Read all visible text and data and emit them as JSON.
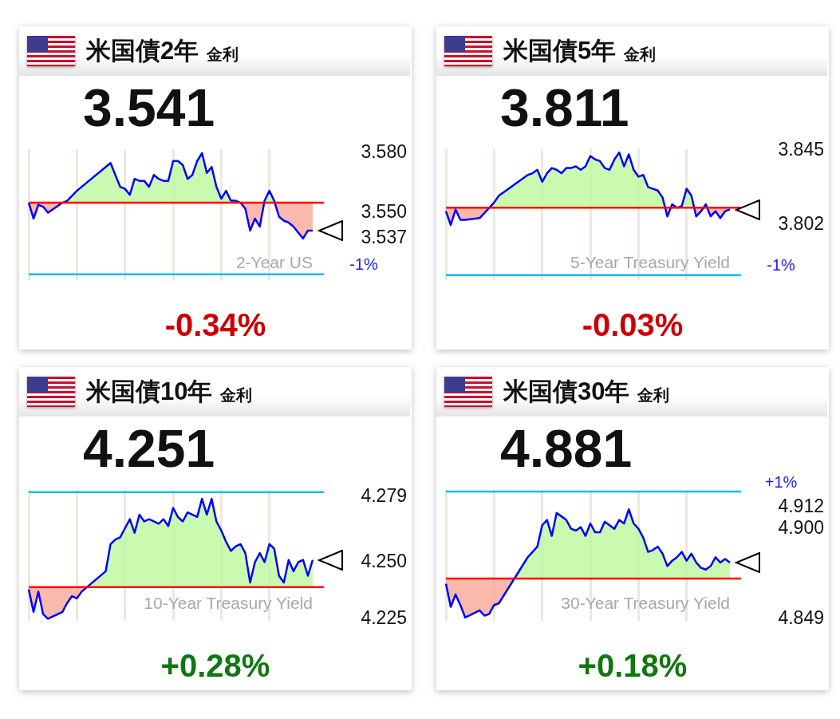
{
  "chart_data": [
    {
      "type": "line",
      "title": "米国債2年",
      "subtitle": "金利",
      "annotations": [
        "3.541",
        "-0.34%",
        "2-Year US",
        "-1%"
      ],
      "tick_labels": "y",
      "grid": "x",
      "color": "#0000ff",
      "categories": [
        null,
        null,
        null,
        null,
        null,
        null,
        null,
        null,
        null,
        null,
        null,
        null,
        null,
        null,
        null,
        null,
        null,
        null,
        null,
        null,
        null,
        null,
        null,
        null,
        null,
        null,
        null,
        null,
        null,
        null,
        null,
        null,
        null,
        null,
        null,
        null,
        null,
        null,
        null,
        null,
        null,
        null,
        null,
        null,
        null,
        null,
        null,
        null,
        null,
        null,
        null,
        null,
        null,
        null,
        null,
        null,
        null,
        null,
        null,
        null
      ],
      "values": [
        3.555,
        3.547,
        3.554,
        3.553,
        3.55,
        null,
        null,
        3.555,
        3.556,
        null,
        3.561,
        3.563,
        null,
        null,
        null,
        null,
        null,
        3.575,
        3.569,
        3.563,
        3.562,
        3.559,
        3.567,
        3.566,
        3.566,
        3.563,
        3.569,
        3.567,
        3.566,
        3.566,
        3.576,
        3.576,
        3.574,
        3.567,
        3.569,
        3.576,
        3.58,
        3.57,
        3.573,
        3.563,
        3.557,
        3.561,
        3.556,
        3.556,
        3.555,
        3.552,
        3.541,
        3.547,
        3.543,
        3.556,
        3.561,
        3.556,
        3.548,
        3.546,
        3.545,
        3.543,
        3.54,
        3.537,
        3.541,
        3.541
      ],
      "ylim": [
        3.516,
        3.582
      ],
      "yticks": [
        {
          "value": 3.58,
          "label": "3.580"
        },
        {
          "value": 3.55,
          "label": "3.550"
        },
        3.537
      ],
      "ref_lines": [
        {
          "axis": "y",
          "value": 3.555,
          "color": "#ff0000"
        },
        {
          "axis": "y",
          "value": 3.519,
          "color": "#00c0f0"
        }
      ]
    },
    {
      "type": "line",
      "title": "米国債5年",
      "subtitle": "金利",
      "annotations": [
        "3.811",
        "-0.03%",
        "5-Year Treasury Yield",
        "-1%"
      ],
      "tick_labels": "y",
      "grid": "x",
      "color": "#0000ff",
      "categories": [
        null,
        null,
        null,
        null,
        null,
        null,
        null,
        null,
        null,
        null,
        null,
        null,
        null,
        null,
        null,
        null,
        null,
        null,
        null,
        null,
        null,
        null,
        null,
        null,
        null,
        null,
        null,
        null,
        null,
        null,
        null,
        null,
        null,
        null,
        null,
        null,
        null,
        null,
        null,
        null,
        null,
        null,
        null,
        null,
        null,
        null,
        null,
        null,
        null,
        null,
        null,
        null,
        null,
        null,
        null,
        null,
        null,
        null,
        null,
        null
      ],
      "values": [
        3.81,
        3.802,
        3.811,
        3.805,
        3.805,
        null,
        null,
        3.806,
        3.809,
        null,
        3.815,
        3.819,
        null,
        null,
        null,
        null,
        null,
        3.831,
        3.832,
        3.834,
        3.827,
        3.832,
        3.835,
        3.834,
        3.832,
        3.835,
        3.835,
        3.836,
        3.834,
        3.836,
        3.842,
        3.84,
        3.839,
        3.835,
        3.834,
        3.84,
        3.844,
        3.836,
        3.843,
        3.834,
        3.83,
        3.831,
        3.824,
        3.823,
        3.822,
        3.818,
        3.807,
        3.814,
        3.812,
        3.813,
        3.823,
        3.819,
        3.807,
        3.81,
        3.814,
        3.807,
        3.81,
        3.806,
        3.81,
        3.811
      ],
      "ylim": [
        3.77,
        3.846
      ],
      "yticks": [
        3.845,
        3.802
      ],
      "ref_lines": [
        {
          "axis": "y",
          "value": 3.812,
          "color": "#ff0000"
        },
        {
          "axis": "y",
          "value": 3.773,
          "color": "#00c0f0"
        }
      ]
    },
    {
      "type": "line",
      "title": "米国債10年",
      "subtitle": "金利",
      "annotations": [
        "4.251",
        "+0.28%",
        "10-Year Treasury Yield"
      ],
      "tick_labels": "y",
      "grid": "x",
      "color": "#0000ff",
      "categories": [
        null,
        null,
        null,
        null,
        null,
        null,
        null,
        null,
        null,
        null,
        null,
        null,
        null,
        null,
        null,
        null,
        null,
        null,
        null,
        null,
        null,
        null,
        null,
        null,
        null,
        null,
        null,
        null,
        null,
        null,
        null,
        null,
        null,
        null,
        null,
        null,
        null,
        null,
        null,
        null,
        null,
        null,
        null,
        null,
        null,
        null,
        null,
        null,
        null,
        null,
        null,
        null,
        null,
        null,
        null,
        null,
        null,
        null,
        null,
        null
      ],
      "values": [
        4.238,
        4.228,
        4.237,
        4.227,
        4.225,
        null,
        null,
        4.228,
        4.232,
        4.235,
        4.234,
        4.237,
        null,
        null,
        null,
        null,
        4.246,
        4.258,
        4.26,
        4.261,
        4.265,
        4.269,
        4.263,
        4.271,
        4.268,
        4.269,
        4.268,
        4.267,
        4.269,
        4.266,
        4.274,
        4.27,
        4.268,
        4.272,
        4.271,
        4.27,
        4.278,
        4.271,
        4.278,
        4.268,
        4.264,
        4.259,
        4.255,
        4.257,
        4.258,
        4.254,
        4.241,
        4.25,
        4.254,
        4.25,
        4.258,
        4.256,
        4.244,
        4.241,
        4.251,
        4.246,
        4.25,
        4.251,
        4.244,
        4.251
      ],
      "ylim": [
        4.224,
        4.282
      ],
      "yticks": [
        4.279,
        {
          "value": 4.25,
          "label": "4.250"
        },
        4.225
      ],
      "ref_lines": [
        {
          "axis": "y",
          "value": 4.239,
          "color": "#ff0000"
        },
        {
          "axis": "y",
          "value": 4.281,
          "color": "#00c0f0"
        }
      ]
    },
    {
      "type": "line",
      "title": "米国債30年",
      "subtitle": "金利",
      "annotations": [
        "4.881",
        "+0.18%",
        "30-Year Treasury Yield",
        "+1%"
      ],
      "tick_labels": "y",
      "grid": "x",
      "color": "#0000ff",
      "categories": [
        null,
        null,
        null,
        null,
        null,
        null,
        null,
        null,
        null,
        null,
        null,
        null,
        null,
        null,
        null,
        null,
        null,
        null,
        null,
        null,
        null,
        null,
        null,
        null,
        null,
        null,
        null,
        null,
        null,
        null,
        null,
        null,
        null,
        null,
        null,
        null,
        null,
        null,
        null,
        null,
        null,
        null,
        null,
        null,
        null,
        null,
        null,
        null,
        null,
        null,
        null,
        null,
        null,
        null,
        null,
        null,
        null,
        null,
        null,
        null
      ],
      "values": [
        4.869,
        4.856,
        4.863,
        4.857,
        4.85,
        null,
        null,
        4.854,
        4.851,
        4.852,
        4.857,
        4.858,
        null,
        null,
        null,
        null,
        null,
        4.884,
        4.887,
        4.89,
        4.902,
        4.905,
        4.896,
        4.909,
        4.907,
        4.905,
        4.9,
        4.899,
        4.901,
        4.896,
        4.903,
        4.898,
        4.898,
        4.904,
        4.902,
        4.9,
        4.905,
        4.903,
        4.911,
        4.903,
        4.9,
        4.895,
        4.887,
        4.888,
        4.89,
        4.886,
        4.879,
        4.882,
        4.884,
        4.887,
        4.882,
        4.886,
        4.881,
        4.878,
        4.877,
        4.879,
        4.884,
        4.881,
        4.883,
        4.881
      ],
      "ylim": [
        4.848,
        4.922
      ],
      "yticks": [
        4.912,
        {
          "value": 4.9,
          "label": "4.900"
        },
        4.849
      ],
      "ref_lines": [
        {
          "axis": "y",
          "value": 4.872,
          "color": "#ff0000"
        },
        {
          "axis": "y",
          "value": 4.921,
          "color": "#00c0f0"
        }
      ]
    }
  ]
}
